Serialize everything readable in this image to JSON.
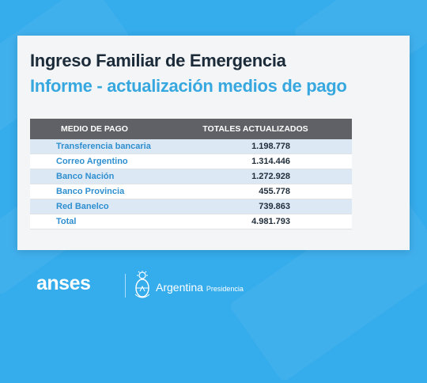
{
  "header": {
    "title": "Ingreso Familiar de Emergencia",
    "subtitle": "Informe - actualización medios de pago"
  },
  "table": {
    "columns": [
      "MEDIO DE PAGO",
      "TOTALES ACTUALIZADOS"
    ],
    "rows": [
      {
        "medio": "Transferencia bancaria",
        "total": "1.198.778"
      },
      {
        "medio": "Correo Argentino",
        "total": "1.314.446"
      },
      {
        "medio": "Banco Nación",
        "total": "1.272.928"
      },
      {
        "medio": "Banco Provincia",
        "total": "455.778"
      },
      {
        "medio": "Red Banelco",
        "total": "739.863"
      },
      {
        "medio": "Total",
        "total": "4.981.793"
      }
    ]
  },
  "footer": {
    "anses_logo": "anses",
    "argentina": "Argentina",
    "presidencia": "Presidencia",
    "shield_icon": "escudo-nacional-icon"
  },
  "colors": {
    "background": "#35acec",
    "title": "#1b2b3a",
    "subtitle": "#37a7e0",
    "table_header": "#606166",
    "row_stripe": "#dde8f5",
    "row_label": "#2e8fd0"
  }
}
